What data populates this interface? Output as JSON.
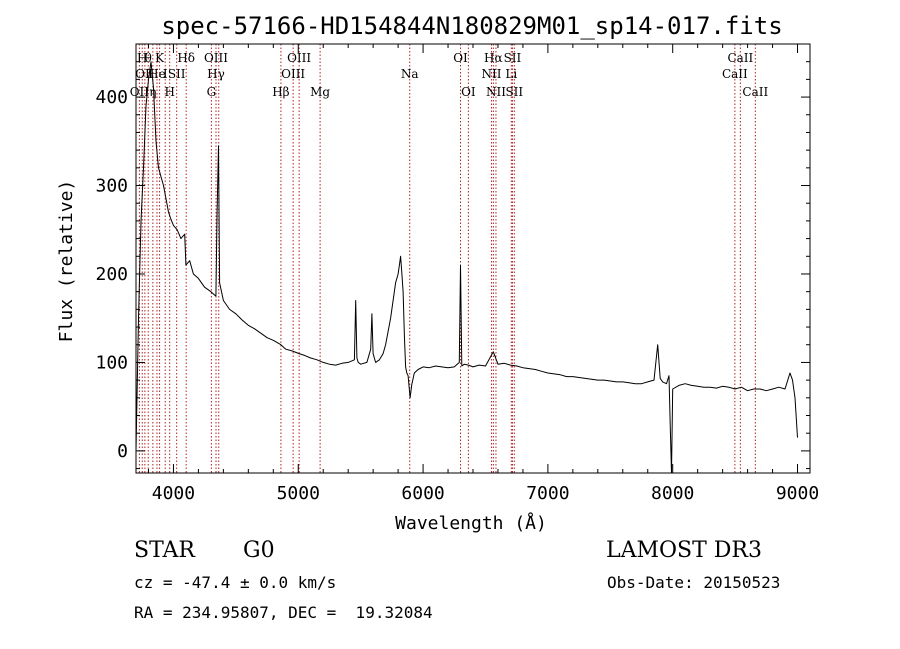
{
  "chart_data": {
    "type": "line",
    "title": "spec-57166-HD154844N180829M01_sp14-017.fits",
    "xlabel": "Wavelength (Å)",
    "ylabel": "Flux (relative)",
    "xlim": [
      3700,
      9100
    ],
    "ylim": [
      -25,
      460
    ],
    "xticks": [
      4000,
      5000,
      6000,
      7000,
      8000,
      9000
    ],
    "yticks": [
      0,
      100,
      200,
      300,
      400
    ],
    "grid": false,
    "line_color": "#000000",
    "marker_color": "#b22222",
    "series": [
      {
        "x": [
          3700,
          3720,
          3740,
          3760,
          3780,
          3800,
          3820,
          3840,
          3860,
          3880,
          3900,
          3920,
          3940,
          3960,
          3980,
          4000,
          4030,
          4060,
          4090,
          4100,
          4130,
          4160,
          4200,
          4250,
          4300,
          4340,
          4350,
          4361,
          4370,
          4400,
          4450,
          4500,
          4550,
          4600,
          4650,
          4700,
          4750,
          4800,
          4861,
          4900,
          4950,
          5007,
          5050,
          5100,
          5150,
          5200,
          5250,
          5300,
          5350,
          5400,
          5450,
          5460,
          5470,
          5480,
          5500,
          5550,
          5580,
          5590,
          5600,
          5620,
          5650,
          5680,
          5700,
          5720,
          5740,
          5760,
          5780,
          5800,
          5810,
          5820,
          5830,
          5840,
          5850,
          5860,
          5870,
          5880,
          5890,
          5896,
          5910,
          5930,
          5960,
          6000,
          6050,
          6100,
          6150,
          6200,
          6250,
          6290,
          6300,
          6310,
          6330,
          6363,
          6400,
          6450,
          6500,
          6563,
          6600,
          6650,
          6700,
          6750,
          6800,
          6850,
          6900,
          6950,
          7000,
          7050,
          7100,
          7150,
          7200,
          7250,
          7300,
          7350,
          7400,
          7450,
          7500,
          7550,
          7600,
          7650,
          7700,
          7750,
          7800,
          7850,
          7880,
          7900,
          7920,
          7950,
          7970,
          7980,
          7990,
          8000,
          8050,
          8100,
          8150,
          8200,
          8250,
          8300,
          8350,
          8400,
          8450,
          8500,
          8550,
          8600,
          8650,
          8700,
          8750,
          8800,
          8850,
          8900,
          8940,
          8960,
          8980,
          9000
        ],
        "y": [
          0,
          150,
          260,
          320,
          390,
          420,
          440,
          410,
          350,
          320,
          310,
          300,
          285,
          270,
          262,
          255,
          250,
          240,
          245,
          210,
          215,
          200,
          195,
          185,
          180,
          175,
          270,
          345,
          190,
          170,
          160,
          155,
          148,
          142,
          138,
          133,
          128,
          125,
          120,
          115,
          113,
          110,
          108,
          105,
          103,
          100,
          98,
          97,
          99,
          100,
          103,
          170,
          105,
          100,
          98,
          100,
          115,
          155,
          110,
          100,
          103,
          110,
          120,
          135,
          150,
          170,
          190,
          200,
          210,
          220,
          200,
          180,
          130,
          95,
          88,
          85,
          70,
          60,
          75,
          88,
          92,
          95,
          94,
          96,
          95,
          94,
          95,
          100,
          210,
          96,
          98,
          97,
          95,
          97,
          96,
          112,
          98,
          99,
          97,
          96,
          94,
          93,
          92,
          90,
          88,
          87,
          86,
          84,
          84,
          83,
          82,
          81,
          80,
          80,
          79,
          78,
          78,
          77,
          76,
          76,
          78,
          80,
          120,
          82,
          78,
          76,
          85,
          30,
          -25,
          70,
          74,
          76,
          74,
          73,
          72,
          72,
          71,
          73,
          72,
          70,
          72,
          68,
          70,
          70,
          68,
          70,
          72,
          70,
          88,
          80,
          60,
          15
        ]
      }
    ],
    "lines": [
      {
        "x": 3727,
        "labels": [
          {
            "text": "OII",
            "row": 3
          }
        ]
      },
      {
        "x": 3750,
        "labels": [
          {
            "text": "H",
            "row": 1
          }
        ]
      },
      {
        "x": 3771,
        "labels": [
          {
            "text": "OII",
            "row": 2
          }
        ]
      },
      {
        "x": 3798,
        "labels": [
          {
            "text": "θ",
            "row": 1
          }
        ]
      },
      {
        "x": 3835,
        "labels": [
          {
            "text": "η",
            "row": 3
          }
        ]
      },
      {
        "x": 3868,
        "labels": [
          {
            "text": "He",
            "row": 2
          }
        ]
      },
      {
        "x": 3889,
        "labels": [
          {
            "text": "K",
            "row": 1
          }
        ]
      },
      {
        "x": 3934,
        "labels": [
          {
            "text": "I",
            "row": 2
          }
        ]
      },
      {
        "x": 3970,
        "labels": [
          {
            "text": "H",
            "row": 3
          }
        ]
      },
      {
        "x": 4026,
        "labels": [
          {
            "text": "SII",
            "row": 2
          }
        ]
      },
      {
        "x": 4102,
        "labels": [
          {
            "text": "Hδ",
            "row": 1
          }
        ]
      },
      {
        "x": 4304,
        "labels": [
          {
            "text": "G",
            "row": 3
          }
        ]
      },
      {
        "x": 4341,
        "labels": [
          {
            "text": "OIII",
            "row": 1
          },
          {
            "text": "Hγ",
            "row": 2
          }
        ]
      },
      {
        "x": 4363,
        "labels": []
      },
      {
        "x": 4861,
        "labels": [
          {
            "text": "Hβ",
            "row": 3
          }
        ]
      },
      {
        "x": 4959,
        "labels": [
          {
            "text": "OIII",
            "row": 2
          }
        ]
      },
      {
        "x": 5007,
        "labels": [
          {
            "text": "OIII",
            "row": 1
          }
        ]
      },
      {
        "x": 5175,
        "labels": [
          {
            "text": "Mg",
            "row": 3
          }
        ]
      },
      {
        "x": 5893,
        "labels": [
          {
            "text": "Na",
            "row": 2
          }
        ]
      },
      {
        "x": 6300,
        "labels": [
          {
            "text": "OI",
            "row": 1
          }
        ]
      },
      {
        "x": 6363,
        "labels": [
          {
            "text": "OI",
            "row": 3
          }
        ]
      },
      {
        "x": 6548,
        "labels": [
          {
            "text": "NII",
            "row": 2
          }
        ]
      },
      {
        "x": 6563,
        "labels": [
          {
            "text": "Hα",
            "row": 1
          }
        ]
      },
      {
        "x": 6584,
        "labels": [
          {
            "text": "NII",
            "row": 3
          }
        ]
      },
      {
        "x": 6707,
        "labels": [
          {
            "text": "Li",
            "row": 2
          }
        ]
      },
      {
        "x": 6716,
        "labels": [
          {
            "text": "SII",
            "row": 1
          }
        ]
      },
      {
        "x": 6731,
        "labels": [
          {
            "text": "SII",
            "row": 3
          }
        ]
      },
      {
        "x": 8498,
        "labels": [
          {
            "text": "CaII",
            "row": 2
          }
        ]
      },
      {
        "x": 8542,
        "labels": [
          {
            "text": "CaII",
            "row": 1
          }
        ]
      },
      {
        "x": 8662,
        "labels": [
          {
            "text": "CaII",
            "row": 3
          }
        ]
      }
    ]
  },
  "info": {
    "object_class": "STAR",
    "subclass": "G0",
    "survey": "LAMOST DR3",
    "redshift": "cz = -47.4 ± 0.0 km/s",
    "obs_date": "Obs-Date: 20150523",
    "coords": "RA = 234.95807, DEC =  19.32084"
  }
}
